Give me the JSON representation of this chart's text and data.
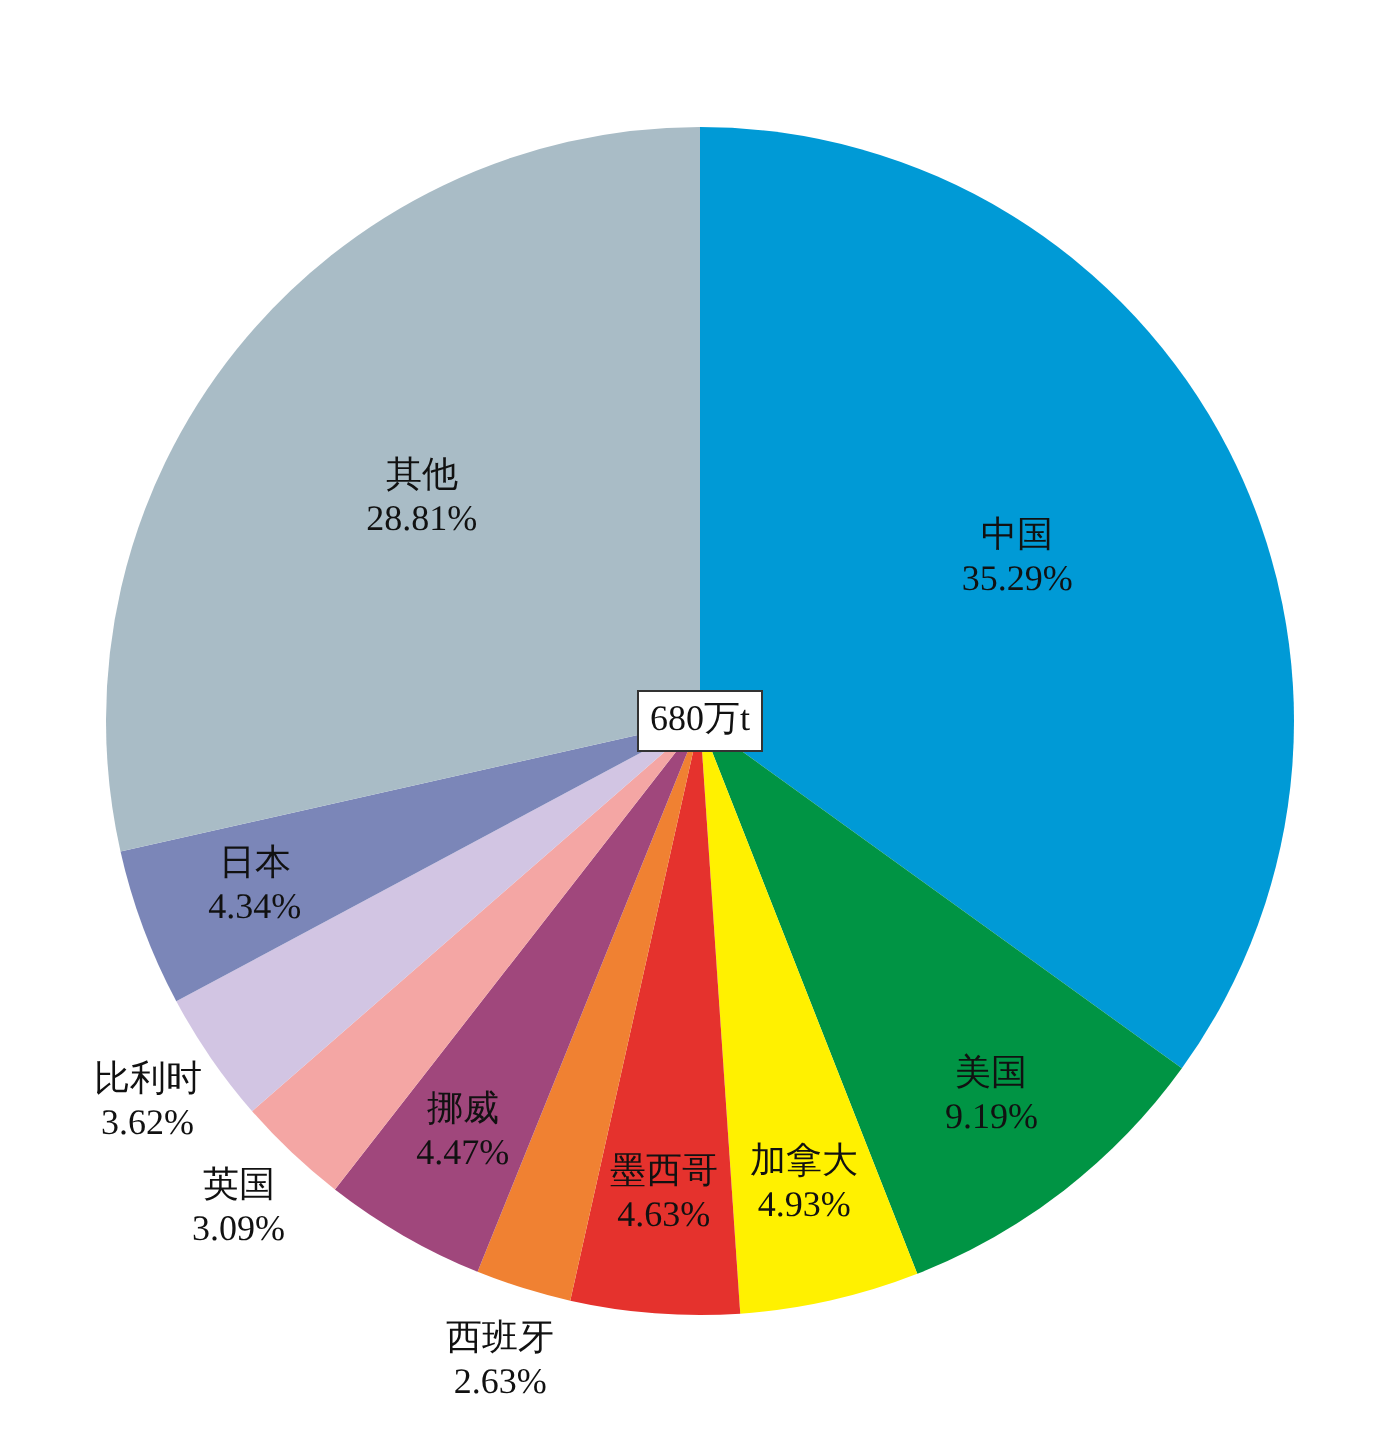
{
  "chart_data": {
    "type": "pie",
    "categories": [
      "中国",
      "美国",
      "加拿大",
      "墨西哥",
      "西班牙",
      "挪威",
      "英国",
      "比利时",
      "日本",
      "其他"
    ],
    "values": [
      35.29,
      9.19,
      4.93,
      4.63,
      2.63,
      4.47,
      3.09,
      3.62,
      4.34,
      28.81
    ],
    "value_labels": [
      "35.29%",
      "9.19%",
      "4.93%",
      "4.63%",
      "2.63%",
      "4.47%",
      "3.09%",
      "3.62%",
      "4.34%",
      "28.81%"
    ],
    "colors": [
      "#009ad6",
      "#009444",
      "#fff100",
      "#e5322d",
      "#f08132",
      "#a0477c",
      "#f4a6a4",
      "#d2c5e3",
      "#7b86b8",
      "#a9bcc6"
    ],
    "annotations": [
      "680万t"
    ],
    "legend": false
  }
}
